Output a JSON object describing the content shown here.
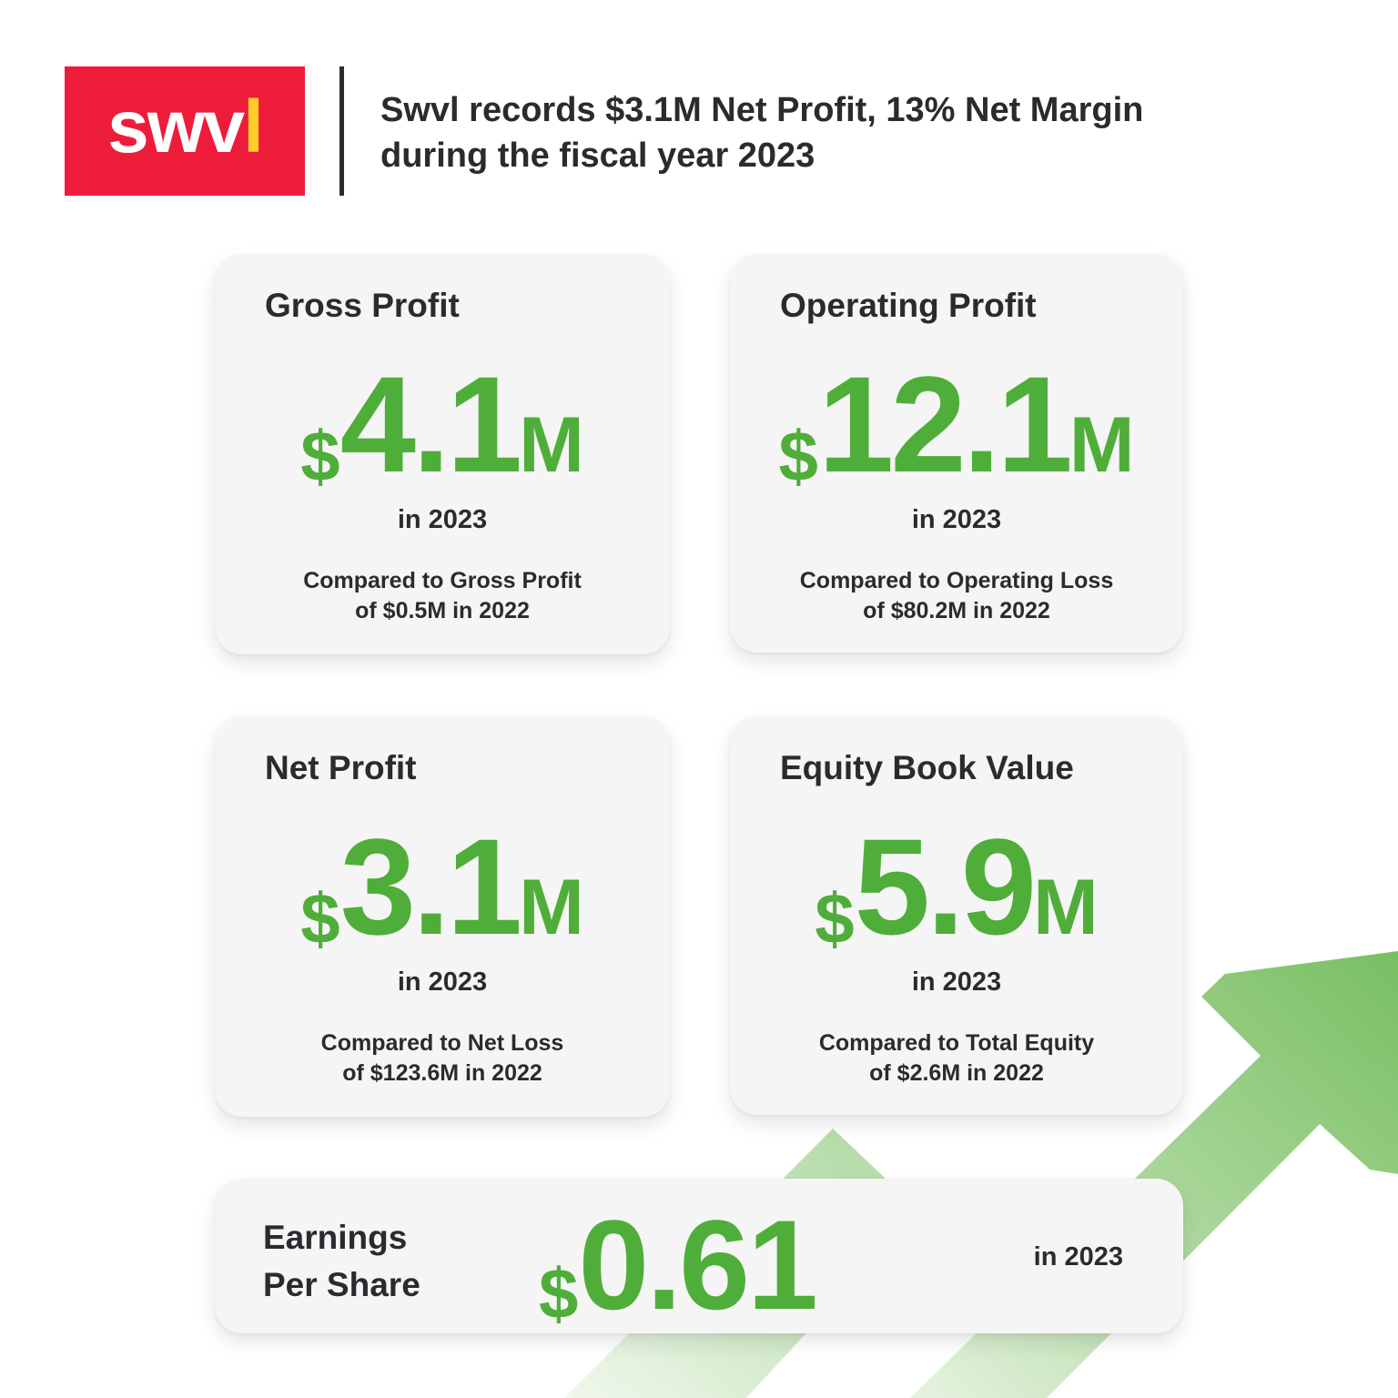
{
  "brand": {
    "logo_text": "swvl",
    "logo_bg_color": "#ee1c3b",
    "logo_accent_color": "#ffcc29"
  },
  "headline": {
    "line1": "Swvl records $3.1M Net Profit, 13% Net Margin",
    "line2": "during the fiscal year 2023"
  },
  "colors": {
    "accent_green": "#4fae39",
    "card_bg": "#f5f5f5",
    "text": "#2a2b2f"
  },
  "cards": [
    {
      "title": "Gross Profit",
      "currency": "$",
      "value": "4.1",
      "unit": "M",
      "year_text": "in 2023",
      "compare_line1": "Compared to Gross Profit",
      "compare_line2": "of $0.5M in 2022"
    },
    {
      "title": "Operating Profit",
      "currency": "$",
      "value": "12.1",
      "unit": "M",
      "year_text": "in 2023",
      "compare_line1": "Compared to Operating Loss",
      "compare_line2": "of $80.2M in 2022"
    },
    {
      "title": "Net Profit",
      "currency": "$",
      "value": "3.1",
      "unit": "M",
      "year_text": "in 2023",
      "compare_line1": "Compared to Net Loss",
      "compare_line2": "of $123.6M in 2022"
    },
    {
      "title": "Equity Book Value",
      "currency": "$",
      "value": "5.9",
      "unit": "M",
      "year_text": "in 2023",
      "compare_line1": "Compared to Total Equity",
      "compare_line2": "of $2.6M in 2022"
    }
  ],
  "eps": {
    "title_line1": "Earnings",
    "title_line2": "Per Share",
    "currency": "$",
    "value": "0.61",
    "year_text": "in 2023"
  },
  "decoration": {
    "arrow_icon": "trend-up-arrow-icon"
  }
}
